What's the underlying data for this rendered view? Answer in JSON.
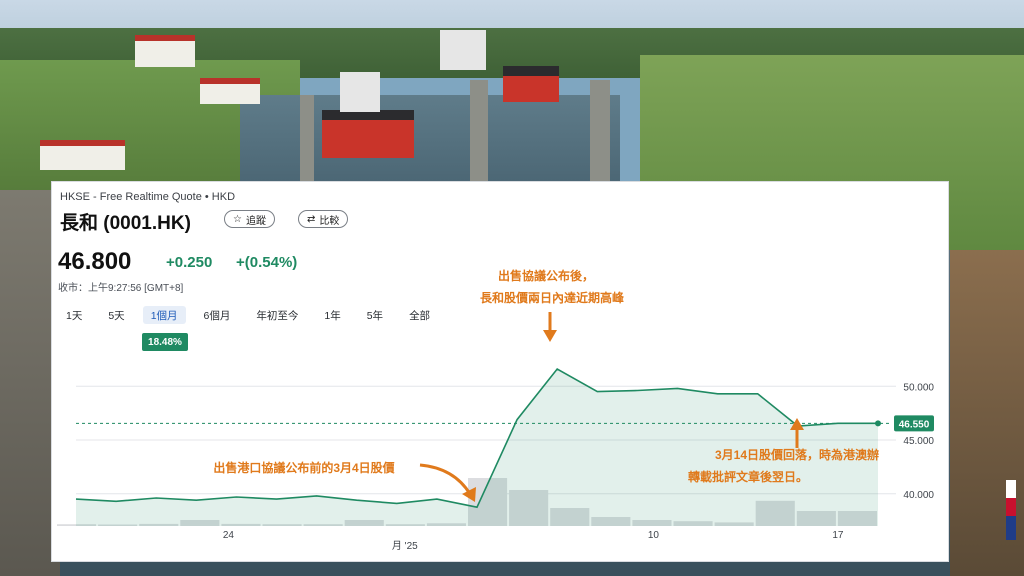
{
  "quote": {
    "source": "HKSE - Free Realtime Quote • HKD",
    "name": "長和 (0001.HK)",
    "follow_label": "追蹤",
    "compare_label": "比較",
    "price": "46.800",
    "change": "+0.250",
    "change_pct": "+(0.54%)",
    "close_time": "收市：上午9:27:56 [GMT+8]",
    "ranges": [
      "1天",
      "5天",
      "1個月",
      "6個月",
      "年初至今",
      "1年",
      "5年",
      "全部"
    ],
    "active_range": "1個月",
    "period_change": "18.48%",
    "up_color": "#1f8a62"
  },
  "chart_data": {
    "type": "area",
    "series": [
      {
        "values": [
          39.5,
          39.3,
          39.6,
          39.4,
          39.7,
          39.5,
          39.8,
          39.4,
          39.1,
          39.5,
          38.75,
          46.9,
          51.6,
          49.5,
          49.6,
          49.8,
          49.3,
          49.3,
          46.3,
          46.55,
          46.55
        ]
      }
    ],
    "volume": [
      0.3,
      0.25,
      0.35,
      1.0,
      0.35,
      0.3,
      0.3,
      1.0,
      0.3,
      0.45,
      8.0,
      6.0,
      3.0,
      1.5,
      1.0,
      0.8,
      0.6,
      4.2,
      2.5,
      2.5
    ],
    "ylim": [
      37.0,
      53.0
    ],
    "yticks": [
      "50.000",
      "45.000",
      "40.000"
    ],
    "xticks": [
      "24",
      "月 '25",
      "10",
      "17"
    ],
    "reference_price": 46.55,
    "reference_label": "46.550",
    "line_color": "#1f8a62",
    "annotations": [
      {
        "lines": [
          "出售協議公布後，",
          "長和股價兩日內達近期高峰"
        ]
      },
      {
        "lines": [
          "出售港口協議公布前的3月4日股價"
        ]
      },
      {
        "lines": [
          "3月14日股價回落，時為港澳辦",
          "轉載批評文章後翌日。"
        ]
      }
    ],
    "annotation_color": "#e07a1c"
  }
}
